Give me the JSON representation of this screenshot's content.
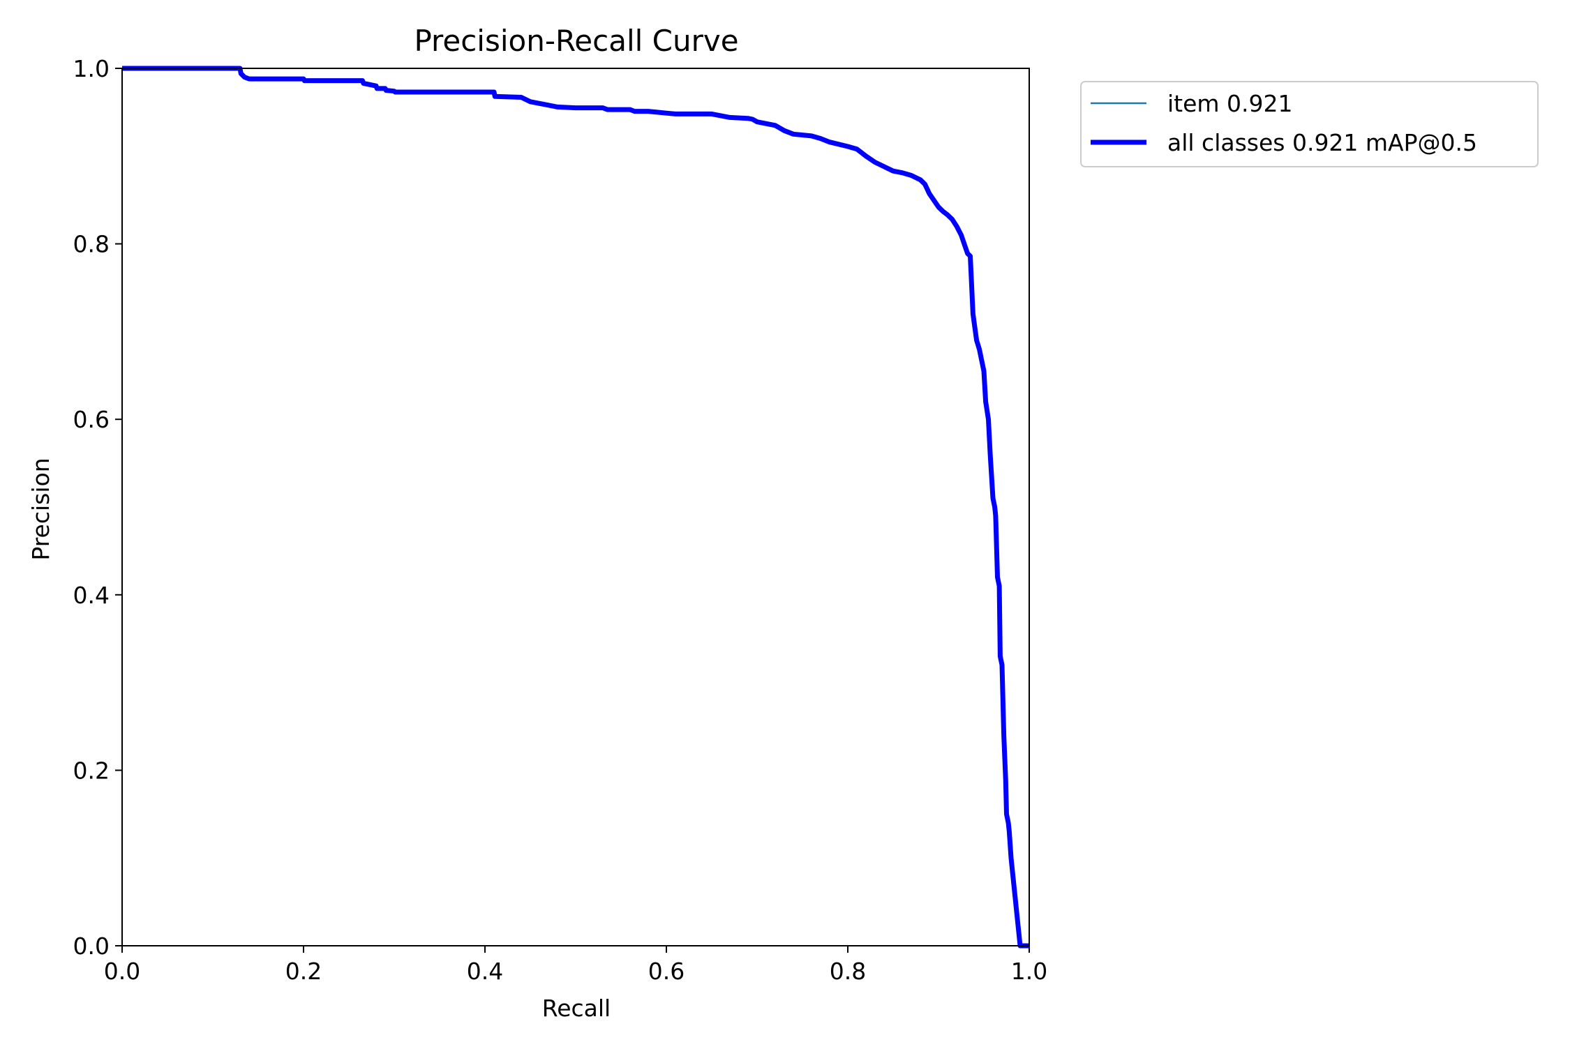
{
  "chart_data": {
    "type": "line",
    "title": "Precision-Recall Curve",
    "xlabel": "Recall",
    "ylabel": "Precision",
    "xlim": [
      0.0,
      1.0
    ],
    "ylim": [
      0.0,
      1.0
    ],
    "xticks": [
      "0.0",
      "0.2",
      "0.4",
      "0.6",
      "0.8",
      "1.0"
    ],
    "yticks": [
      "0.0",
      "0.2",
      "0.4",
      "0.6",
      "0.8",
      "1.0"
    ],
    "grid": false,
    "legend_position": "outside-top-right",
    "colors": {
      "item": "#1f77b4",
      "all_classes": "#0000ff"
    },
    "series": [
      {
        "name": "item 0.921",
        "color": "#1f77b4",
        "x": [
          0.0,
          0.13,
          0.131,
          0.135,
          0.14,
          0.2,
          0.201,
          0.265,
          0.266,
          0.28,
          0.281,
          0.29,
          0.291,
          0.3,
          0.301,
          0.41,
          0.411,
          0.44,
          0.45,
          0.46,
          0.47,
          0.48,
          0.5,
          0.53,
          0.535,
          0.56,
          0.565,
          0.58,
          0.59,
          0.6,
          0.61,
          0.65,
          0.66,
          0.67,
          0.69,
          0.695,
          0.7,
          0.72,
          0.73,
          0.74,
          0.76,
          0.77,
          0.78,
          0.8,
          0.81,
          0.815,
          0.82,
          0.83,
          0.84,
          0.85,
          0.86,
          0.87,
          0.88,
          0.885,
          0.89,
          0.9,
          0.905,
          0.91,
          0.915,
          0.92,
          0.925,
          0.93,
          0.932,
          0.935,
          0.938,
          0.94,
          0.942,
          0.945,
          0.948,
          0.95,
          0.952,
          0.955,
          0.957,
          0.96,
          0.962,
          0.963,
          0.965,
          0.967,
          0.968,
          0.97,
          0.972,
          0.974,
          0.975,
          0.977,
          0.978,
          0.98,
          0.982,
          0.984,
          0.986,
          0.988,
          0.99,
          0.992,
          0.994,
          0.996,
          0.998,
          1.0
        ],
        "y": [
          1.0,
          1.0,
          0.994,
          0.99,
          0.988,
          0.988,
          0.986,
          0.986,
          0.983,
          0.98,
          0.977,
          0.977,
          0.975,
          0.974,
          0.973,
          0.973,
          0.968,
          0.967,
          0.962,
          0.96,
          0.958,
          0.956,
          0.955,
          0.955,
          0.953,
          0.953,
          0.951,
          0.951,
          0.95,
          0.949,
          0.948,
          0.948,
          0.946,
          0.944,
          0.943,
          0.942,
          0.939,
          0.935,
          0.929,
          0.925,
          0.923,
          0.92,
          0.916,
          0.911,
          0.908,
          0.904,
          0.9,
          0.893,
          0.888,
          0.883,
          0.881,
          0.878,
          0.873,
          0.868,
          0.857,
          0.842,
          0.837,
          0.833,
          0.828,
          0.82,
          0.81,
          0.795,
          0.789,
          0.786,
          0.72,
          0.705,
          0.69,
          0.68,
          0.665,
          0.655,
          0.62,
          0.6,
          0.56,
          0.51,
          0.5,
          0.49,
          0.42,
          0.41,
          0.33,
          0.32,
          0.24,
          0.19,
          0.15,
          0.14,
          0.13,
          0.1,
          0.08,
          0.06,
          0.04,
          0.02,
          0.0,
          0.0,
          0.0,
          0.0,
          0.0,
          0.0
        ]
      },
      {
        "name": "all classes 0.921 mAP@0.5",
        "color": "#0000ff",
        "x": [
          0.0,
          0.13,
          0.131,
          0.135,
          0.14,
          0.2,
          0.201,
          0.265,
          0.266,
          0.28,
          0.281,
          0.29,
          0.291,
          0.3,
          0.301,
          0.41,
          0.411,
          0.44,
          0.45,
          0.46,
          0.47,
          0.48,
          0.5,
          0.53,
          0.535,
          0.56,
          0.565,
          0.58,
          0.59,
          0.6,
          0.61,
          0.65,
          0.66,
          0.67,
          0.69,
          0.695,
          0.7,
          0.72,
          0.73,
          0.74,
          0.76,
          0.77,
          0.78,
          0.8,
          0.81,
          0.815,
          0.82,
          0.83,
          0.84,
          0.85,
          0.86,
          0.87,
          0.88,
          0.885,
          0.89,
          0.9,
          0.905,
          0.91,
          0.915,
          0.92,
          0.925,
          0.93,
          0.932,
          0.935,
          0.938,
          0.94,
          0.942,
          0.945,
          0.948,
          0.95,
          0.952,
          0.955,
          0.957,
          0.96,
          0.962,
          0.963,
          0.965,
          0.967,
          0.968,
          0.97,
          0.972,
          0.974,
          0.975,
          0.977,
          0.978,
          0.98,
          0.982,
          0.984,
          0.986,
          0.988,
          0.99,
          0.992,
          0.994,
          0.996,
          0.998,
          1.0
        ],
        "y": [
          1.0,
          1.0,
          0.994,
          0.99,
          0.988,
          0.988,
          0.986,
          0.986,
          0.983,
          0.98,
          0.977,
          0.977,
          0.975,
          0.974,
          0.973,
          0.973,
          0.968,
          0.967,
          0.962,
          0.96,
          0.958,
          0.956,
          0.955,
          0.955,
          0.953,
          0.953,
          0.951,
          0.951,
          0.95,
          0.949,
          0.948,
          0.948,
          0.946,
          0.944,
          0.943,
          0.942,
          0.939,
          0.935,
          0.929,
          0.925,
          0.923,
          0.92,
          0.916,
          0.911,
          0.908,
          0.904,
          0.9,
          0.893,
          0.888,
          0.883,
          0.881,
          0.878,
          0.873,
          0.868,
          0.857,
          0.842,
          0.837,
          0.833,
          0.828,
          0.82,
          0.81,
          0.795,
          0.789,
          0.786,
          0.72,
          0.705,
          0.69,
          0.68,
          0.665,
          0.655,
          0.62,
          0.6,
          0.56,
          0.51,
          0.5,
          0.49,
          0.42,
          0.41,
          0.33,
          0.32,
          0.24,
          0.19,
          0.15,
          0.14,
          0.13,
          0.1,
          0.08,
          0.06,
          0.04,
          0.02,
          0.0,
          0.0,
          0.0,
          0.0,
          0.0,
          0.0
        ]
      }
    ]
  }
}
